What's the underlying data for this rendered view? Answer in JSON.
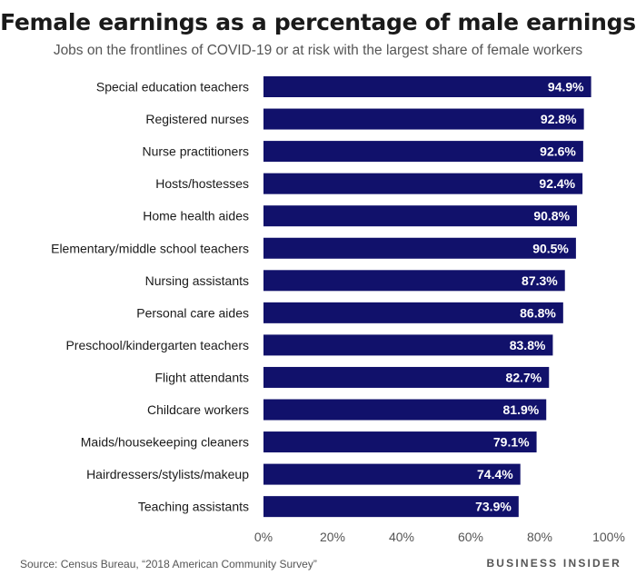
{
  "title": "Female earnings as a percentage of male earnings",
  "subtitle": "Jobs on the frontlines of COVID-19 or at risk with the largest share of female workers",
  "source": "Source: Census Bureau, “2018 American Community Survey”",
  "brand": "BUSINESS INSIDER",
  "bar_color": "#11116b",
  "bar_label_color": "#ffffff",
  "chart_data": {
    "type": "bar",
    "orientation": "horizontal",
    "title": "Female earnings as a percentage of male earnings",
    "subtitle": "Jobs on the frontlines of COVID-19 or at risk with the largest share of female workers",
    "categories": [
      "Special education teachers",
      "Registered nurses",
      "Nurse practitioners",
      "Hosts/hostesses",
      "Home health aides",
      "Elementary/middle school teachers",
      "Nursing assistants",
      "Personal care aides",
      "Preschool/kindergarten teachers",
      "Flight attendants",
      "Childcare workers",
      "Maids/housekeeping cleaners",
      "Hairdressers/stylists/makeup",
      "Teaching assistants"
    ],
    "values": [
      94.9,
      92.8,
      92.6,
      92.4,
      90.8,
      90.5,
      87.3,
      86.8,
      83.8,
      82.7,
      81.9,
      79.1,
      74.4,
      73.9
    ],
    "data_labels": [
      "94.9%",
      "92.8%",
      "92.6%",
      "92.4%",
      "90.8%",
      "90.5%",
      "87.3%",
      "86.8%",
      "83.8%",
      "82.7%",
      "81.9%",
      "79.1%",
      "74.4%",
      "73.9%"
    ],
    "xlim": [
      0,
      100
    ],
    "xticks": [
      0,
      20,
      40,
      60,
      80,
      100
    ],
    "xtick_labels": [
      "0%",
      "20%",
      "40%",
      "60%",
      "80%",
      "100%"
    ],
    "grid": false,
    "legend": false
  }
}
